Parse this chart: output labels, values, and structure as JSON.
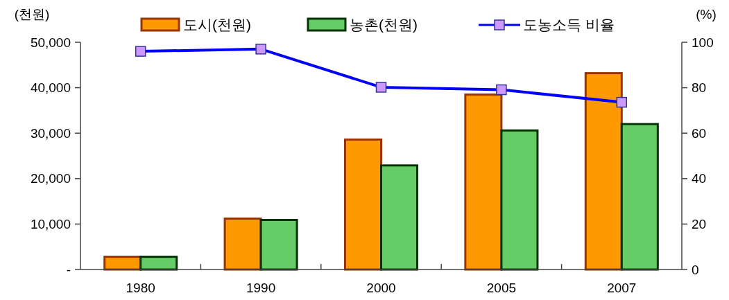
{
  "chart_data": {
    "type": "bar",
    "ylabel": "(천원)",
    "y2label": "(%)",
    "categories": [
      "1980",
      "1990",
      "2000",
      "2005",
      "2007"
    ],
    "series": [
      {
        "name": "도시(천원)",
        "color": "#ff9900",
        "values": [
          2800,
          11200,
          28600,
          38500,
          43200
        ]
      },
      {
        "name": "농촌(천원)",
        "color": "#66cc66",
        "values": [
          2800,
          10900,
          22900,
          30600,
          32000
        ]
      },
      {
        "name": "도농소득 비율",
        "type": "line",
        "axis": "y2",
        "color": "#0000ff",
        "values": [
          96.0,
          97.0,
          80.2,
          79.1,
          73.6
        ]
      }
    ],
    "ylim": [
      0,
      50000
    ],
    "yticks": [
      {
        "value": 0,
        "label": "-"
      },
      {
        "value": 10000,
        "label": "10,000"
      },
      {
        "value": 20000,
        "label": "20,000"
      },
      {
        "value": 30000,
        "label": "30,000"
      },
      {
        "value": 40000,
        "label": "40,000"
      },
      {
        "value": 50000,
        "label": "50,000"
      }
    ],
    "y2lim": [
      0,
      100
    ],
    "y2ticks": [
      0,
      20,
      40,
      60,
      80,
      100
    ],
    "legend": "top",
    "marker": "square",
    "grid": false
  }
}
